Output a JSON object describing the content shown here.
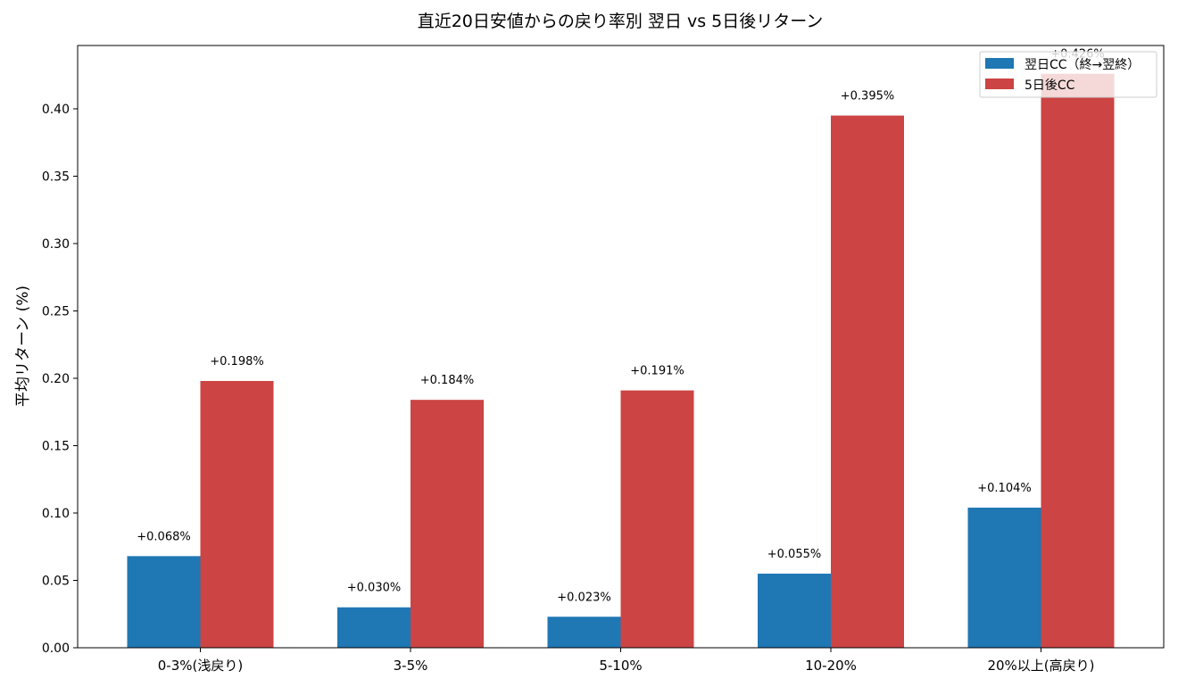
{
  "chart_data": {
    "type": "bar",
    "title": "直近20日安値からの戻り率別 翌日 vs 5日後リターン",
    "xlabel": "",
    "ylabel": "平均リターン (%)",
    "categories": [
      "0-3%(浅戻り)",
      "3-5%",
      "5-10%",
      "10-20%",
      "20%以上(高戻り)"
    ],
    "series": [
      {
        "name": "翌日CC（終→翌終）",
        "color": "#1f77b4",
        "values": [
          0.068,
          0.03,
          0.023,
          0.055,
          0.104
        ],
        "labels": [
          "+0.068%",
          "+0.030%",
          "+0.023%",
          "+0.055%",
          "+0.104%"
        ]
      },
      {
        "name": "5日後CC",
        "color": "#cc4444",
        "values": [
          0.198,
          0.184,
          0.191,
          0.395,
          0.426
        ],
        "labels": [
          "+0.198%",
          "+0.184%",
          "+0.191%",
          "+0.395%",
          "+0.426%"
        ]
      }
    ],
    "ylim": [
      0,
      0.447
    ],
    "yticks": [
      "0.00",
      "0.05",
      "0.10",
      "0.15",
      "0.20",
      "0.25",
      "0.30",
      "0.35",
      "0.40"
    ],
    "grid": false,
    "legend": "top-right"
  }
}
